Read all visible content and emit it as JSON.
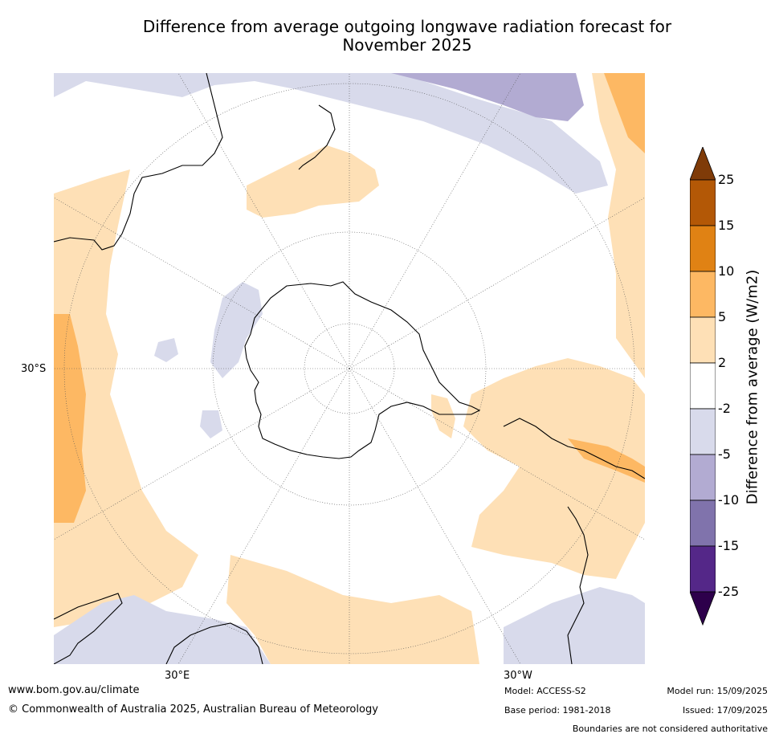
{
  "title_line1": "Difference from average outgoing longwave radiation forecast for",
  "title_line2": "November 2025",
  "map": {
    "projection": "south polar stereographic",
    "lon_labels": [
      "30°E",
      "30°W"
    ],
    "lat_labels": [
      "30°S"
    ]
  },
  "colorbar": {
    "label": "Difference from average (W/m2)",
    "ticks": [
      "25",
      "15",
      "10",
      "5",
      "2",
      "-2",
      "-5",
      "-10",
      "-15",
      "-25"
    ],
    "bins": [
      {
        "range": ">25",
        "color": "#7f3b08"
      },
      {
        "range": "15 to 25",
        "color": "#b35806"
      },
      {
        "range": "10 to 15",
        "color": "#e08214"
      },
      {
        "range": "5 to 10",
        "color": "#fdb863"
      },
      {
        "range": "2 to 5",
        "color": "#fee0b6"
      },
      {
        "range": "-2 to 2",
        "color": "#ffffff"
      },
      {
        "range": "-5 to -2",
        "color": "#d8daeb"
      },
      {
        "range": "-10 to -5",
        "color": "#b2abd2"
      },
      {
        "range": "-15 to -10",
        "color": "#8073ac"
      },
      {
        "range": "-25 to -15",
        "color": "#542788"
      },
      {
        "range": "<-25",
        "color": "#2d004b"
      }
    ]
  },
  "footer": {
    "website": "www.bom.gov.au/climate",
    "copyright": "© Commonwealth of Australia 2025, Australian Bureau of Meteorology",
    "model": "Model: ACCESS-S2",
    "base_period": "Base period: 1981-2018",
    "model_run": "Model run: 15/09/2025",
    "issued": "Issued: 17/09/2025",
    "disclaimer": "Boundaries are not considered authoritative"
  }
}
